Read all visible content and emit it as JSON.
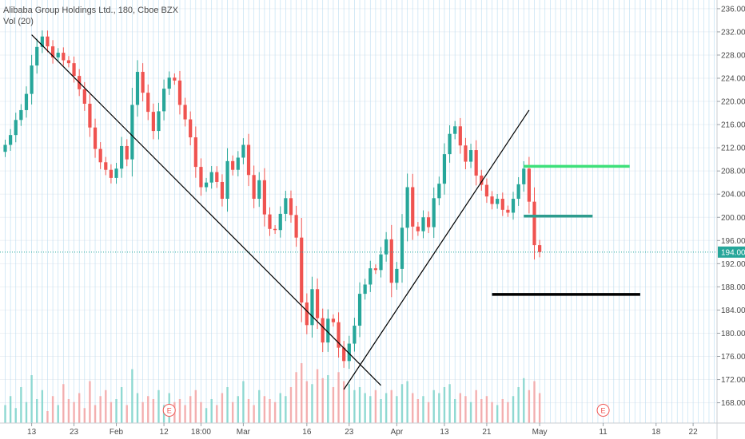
{
  "legend": {
    "title": "Alibaba Group Holdings Ltd., 180, Cboe BZX",
    "indicator": "Vol (20)"
  },
  "colors": {
    "up": "#26a69a",
    "down": "#ef5350",
    "vol_up": "#7fd4cb",
    "vol_down": "#f4a3a3",
    "vgrid": "#b9ddf2",
    "hgrid": "#eef1f5",
    "price_tag": "#26a69a",
    "trend": "#000000",
    "green_line": "#3ee07a",
    "teal_line": "#2e9c8e",
    "black_line": "#000000",
    "earnings": "#ef5350"
  },
  "chart_data": {
    "type": "candlestick",
    "title": "Alibaba Group Holdings Ltd., 180, Cboe BZX",
    "ylabel": "",
    "ylim": [
      164.5,
      237.5
    ],
    "price_ticks": [
      "236.00",
      "232.00",
      "228.00",
      "224.00",
      "220.00",
      "216.00",
      "212.00",
      "208.00",
      "204.00",
      "200.00",
      "196.00",
      "192.00",
      "188.00",
      "184.00",
      "180.00",
      "176.00",
      "172.00",
      "168.00"
    ],
    "time_ticks": [
      {
        "label": "13",
        "i": 5
      },
      {
        "label": "23",
        "i": 13
      },
      {
        "label": "Feb",
        "i": 21
      },
      {
        "label": "12",
        "i": 30
      },
      {
        "label": "18:00",
        "i": 37
      },
      {
        "label": "Mar",
        "i": 45
      },
      {
        "label": "16",
        "i": 57
      },
      {
        "label": "23",
        "i": 65
      },
      {
        "label": "Apr",
        "i": 74
      },
      {
        "label": "13",
        "i": 83
      },
      {
        "label": "21",
        "i": 91
      },
      {
        "label": "May",
        "i": 101
      },
      {
        "label": "11",
        "i": 113
      },
      {
        "label": "18",
        "i": 123
      },
      {
        "label": "22",
        "i": 130
      }
    ],
    "last_price": 194.0,
    "last_price_label": "194.00",
    "earnings_markers": [
      {
        "label": "E",
        "i": 31
      },
      {
        "label": "E",
        "i": 113
      }
    ],
    "candles_close": [
      212.5,
      214.2,
      216.8,
      218.5,
      221.3,
      226.2,
      229.4,
      231.2,
      229.5,
      227.6,
      228.4,
      227.1,
      226.6,
      224.4,
      222.1,
      219.6,
      215.5,
      211.8,
      209.5,
      208.2,
      206.8,
      208.4,
      212.3,
      210.0,
      219.4,
      225.1,
      221.5,
      218.2,
      214.9,
      218.3,
      222.2,
      224.1,
      223.6,
      219.4,
      216.9,
      213.8,
      208.7,
      205.2,
      206.0,
      207.8,
      206.1,
      203.2,
      209.7,
      208.2,
      210.3,
      212.5,
      207.3,
      203.2,
      206.4,
      200.5,
      198.0,
      197.8,
      200.6,
      203.3,
      200.4,
      196.5,
      185.3,
      181.4,
      187.6,
      182.6,
      178.4,
      182.5,
      181.9,
      177.5,
      175.2,
      178.2,
      181.3,
      186.8,
      188.4,
      191.2,
      190.9,
      193.6,
      196.2,
      188.7,
      191.1,
      198.2,
      205.2,
      198.4,
      197.6,
      200.0,
      198.3,
      203.3,
      205.8,
      210.9,
      214.4,
      215.7,
      212.4,
      209.6,
      211.6,
      207.2,
      205.6,
      203.6,
      202.3,
      203.2,
      201.3,
      200.8,
      203.2,
      205.7,
      208.4,
      202.7,
      195.2,
      194.0
    ],
    "candles_change": [
      1.2,
      1.7,
      2.6,
      1.7,
      2.8,
      4.9,
      3.2,
      1.8,
      -1.7,
      -1.9,
      0.8,
      -1.3,
      -0.5,
      -2.2,
      -2.3,
      -2.5,
      -4.1,
      -3.7,
      -2.3,
      -1.3,
      -1.4,
      1.6,
      3.9,
      -2.3,
      9.4,
      5.7,
      -3.6,
      -3.3,
      -3.3,
      3.4,
      3.9,
      1.9,
      -0.5,
      -4.2,
      -2.5,
      -3.1,
      -5.1,
      -3.5,
      0.8,
      1.8,
      -1.7,
      -2.9,
      6.5,
      -1.5,
      2.1,
      2.2,
      -5.2,
      -4.1,
      3.2,
      -5.9,
      -2.5,
      -0.2,
      2.8,
      2.7,
      -2.9,
      -3.9,
      -11.2,
      -3.9,
      6.2,
      -5.0,
      -4.2,
      4.1,
      -0.6,
      -4.4,
      -2.3,
      3.0,
      3.1,
      5.5,
      1.6,
      2.8,
      -0.3,
      2.7,
      2.6,
      -7.5,
      2.4,
      7.1,
      7.0,
      -6.8,
      -0.8,
      2.4,
      -1.7,
      5.0,
      2.5,
      5.1,
      3.5,
      1.3,
      -3.3,
      -2.8,
      2.0,
      -4.4,
      -1.6,
      -2.0,
      -1.3,
      0.9,
      -1.9,
      -0.5,
      2.4,
      2.5,
      2.7,
      -5.7,
      -7.5,
      -1.2
    ],
    "volume_level": [
      0.3,
      0.45,
      0.25,
      0.6,
      0.35,
      0.8,
      0.4,
      0.55,
      0.2,
      0.45,
      0.3,
      0.65,
      0.4,
      0.35,
      0.5,
      0.25,
      0.7,
      0.3,
      0.45,
      0.55,
      0.35,
      0.4,
      0.6,
      0.3,
      0.9,
      0.5,
      0.35,
      0.45,
      0.4,
      0.55,
      0.3,
      0.5,
      0.35,
      0.4,
      0.3,
      0.45,
      0.55,
      0.35,
      0.25,
      0.4,
      0.3,
      0.5,
      0.6,
      0.35,
      0.45,
      0.7,
      0.4,
      0.3,
      0.55,
      0.45,
      0.4,
      0.35,
      0.5,
      0.45,
      0.6,
      0.85,
      1.0,
      0.7,
      0.65,
      0.9,
      0.75,
      0.8,
      0.6,
      0.85,
      0.7,
      0.65,
      0.55,
      0.6,
      0.5,
      0.45,
      0.55,
      0.4,
      0.5,
      0.55,
      0.45,
      0.65,
      0.7,
      0.5,
      0.4,
      0.45,
      0.35,
      0.55,
      0.5,
      0.6,
      0.65,
      0.4,
      0.5,
      0.45,
      0.35,
      0.55,
      0.4,
      0.45,
      0.35,
      0.3,
      0.4,
      0.35,
      0.45,
      0.6,
      0.75,
      0.55,
      0.7,
      0.5
    ],
    "trendlines": [
      {
        "name": "downtrend",
        "from": {
          "i": 5,
          "price": 231.5
        },
        "to": {
          "i": 71,
          "price": 171.0
        }
      },
      {
        "name": "uptrend",
        "from": {
          "i": 64,
          "price": 170.3
        },
        "to": {
          "i": 99,
          "price": 218.5
        }
      }
    ],
    "horizontal_lines": [
      {
        "name": "green-level",
        "price": 208.8,
        "from_i": 98,
        "to_i": 118,
        "color_key": "green_line"
      },
      {
        "name": "teal-level",
        "price": 200.2,
        "from_i": 98,
        "to_i": 111,
        "color_key": "teal_line"
      },
      {
        "name": "black-level",
        "price": 186.7,
        "from_i": 92,
        "to_i": 120,
        "color_key": "black_line"
      }
    ]
  }
}
